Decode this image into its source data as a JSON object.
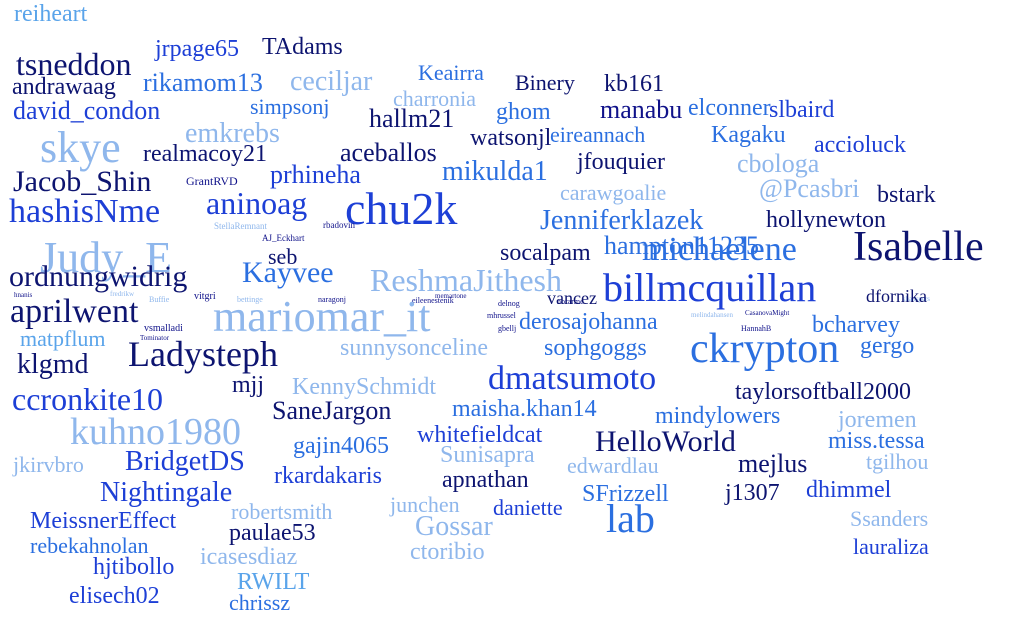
{
  "palette": {
    "navy": "#0d1470",
    "darkblue": "#10128a",
    "blue": "#1d3fd6",
    "royal": "#2b6fe0",
    "sky": "#5aa4ea",
    "light": "#8fb7ec",
    "white": "#ffffff"
  },
  "words": [
    {
      "text": "reiheart",
      "color": "sky",
      "size": 24
    },
    {
      "text": "jrpage65",
      "color": "blue",
      "size": 24
    },
    {
      "text": "TAdams",
      "color": "navy",
      "size": 24
    },
    {
      "text": "tsneddon",
      "color": "navy",
      "size": 32
    },
    {
      "text": "rikamom13",
      "color": "royal",
      "size": 26
    },
    {
      "text": "ceciljar",
      "color": "light",
      "size": 28
    },
    {
      "text": "Keairra",
      "color": "royal",
      "size": 22
    },
    {
      "text": "Binery",
      "color": "navy",
      "size": 22
    },
    {
      "text": "kb161",
      "color": "navy",
      "size": 24
    },
    {
      "text": "andrawaag",
      "color": "navy",
      "size": 24
    },
    {
      "text": "charronia",
      "color": "light",
      "size": 22
    },
    {
      "text": "david_condon",
      "color": "blue",
      "size": 26
    },
    {
      "text": "simpsonj",
      "color": "royal",
      "size": 22
    },
    {
      "text": "ghom",
      "color": "royal",
      "size": 24
    },
    {
      "text": "manabu",
      "color": "darkblue",
      "size": 26
    },
    {
      "text": "elconner",
      "color": "royal",
      "size": 24
    },
    {
      "text": "slbaird",
      "color": "blue",
      "size": 24
    },
    {
      "text": "emkrebs",
      "color": "light",
      "size": 28
    },
    {
      "text": "hallm21",
      "color": "navy",
      "size": 26
    },
    {
      "text": "watsonjl",
      "color": "navy",
      "size": 24
    },
    {
      "text": "eireannach",
      "color": "royal",
      "size": 22
    },
    {
      "text": "Kagaku",
      "color": "royal",
      "size": 24
    },
    {
      "text": "accioluck",
      "color": "blue",
      "size": 24
    },
    {
      "text": "skye",
      "color": "light",
      "size": 44
    },
    {
      "text": "realmacoy21",
      "color": "navy",
      "size": 24
    },
    {
      "text": "aceballos",
      "color": "navy",
      "size": 26
    },
    {
      "text": "prhineha",
      "color": "blue",
      "size": 26
    },
    {
      "text": "mikulda1",
      "color": "royal",
      "size": 28
    },
    {
      "text": "jfouquier",
      "color": "navy",
      "size": 24
    },
    {
      "text": "cbologa",
      "color": "light",
      "size": 26
    },
    {
      "text": "Jacob_Shin",
      "color": "navy",
      "size": 30
    },
    {
      "text": "GrantRVD",
      "color": "darkblue",
      "size": 12
    },
    {
      "text": "carawgoalie",
      "color": "light",
      "size": 22
    },
    {
      "text": "@Pcasbri",
      "color": "light",
      "size": 26
    },
    {
      "text": "bstark",
      "color": "navy",
      "size": 24
    },
    {
      "text": "hashisNme",
      "color": "blue",
      "size": 34
    },
    {
      "text": "aninoag",
      "color": "blue",
      "size": 32
    },
    {
      "text": "chu2k",
      "color": "blue",
      "size": 46
    },
    {
      "text": "Jenniferklazek",
      "color": "royal",
      "size": 28
    },
    {
      "text": "hollynewton",
      "color": "navy",
      "size": 24
    },
    {
      "text": "StellaRemnant",
      "color": "light",
      "size": 9
    },
    {
      "text": "AJ_Eckhart",
      "color": "darkblue",
      "size": 9
    },
    {
      "text": "hampton11235",
      "color": "royal",
      "size": 26
    },
    {
      "text": "Judy_E",
      "color": "light",
      "size": 44
    },
    {
      "text": "rbadovin",
      "color": "darkblue",
      "size": 9
    },
    {
      "text": "michaelene",
      "color": "royal",
      "size": 34
    },
    {
      "text": "Isabelle",
      "color": "navy",
      "size": 42
    },
    {
      "text": "seb",
      "color": "navy",
      "size": 22
    },
    {
      "text": "socalpam",
      "color": "navy",
      "size": 24
    },
    {
      "text": "ordnungwidrig",
      "color": "navy",
      "size": 30
    },
    {
      "text": "Kayvee",
      "color": "royal",
      "size": 30
    },
    {
      "text": "ReshmaJithesh",
      "color": "light",
      "size": 32
    },
    {
      "text": "hnanis",
      "color": "darkblue",
      "size": 7
    },
    {
      "text": "fredrikw",
      "color": "light",
      "size": 7
    },
    {
      "text": "memartone",
      "color": "darkblue",
      "size": 7
    },
    {
      "text": "khanspers",
      "color": "light",
      "size": 7
    },
    {
      "text": "billmcquillan",
      "color": "blue",
      "size": 40
    },
    {
      "text": "aprilwent",
      "color": "navy",
      "size": 34
    },
    {
      "text": "vitgri",
      "color": "darkblue",
      "size": 10
    },
    {
      "text": "Buffie",
      "color": "light",
      "size": 8
    },
    {
      "text": "bettinge",
      "color": "light",
      "size": 8
    },
    {
      "text": "naragonj",
      "color": "darkblue",
      "size": 8
    },
    {
      "text": "eileenestenik",
      "color": "darkblue",
      "size": 8
    },
    {
      "text": "delnog",
      "color": "darkblue",
      "size": 8
    },
    {
      "text": "norarme",
      "color": "darkblue",
      "size": 8
    },
    {
      "text": "dfornika",
      "color": "navy",
      "size": 18
    },
    {
      "text": "mariomar_it",
      "color": "light",
      "size": 44
    },
    {
      "text": "vancez",
      "color": "navy",
      "size": 18
    },
    {
      "text": "mhrussel",
      "color": "darkblue",
      "size": 8
    },
    {
      "text": "melindahansen",
      "color": "light",
      "size": 7
    },
    {
      "text": "derosajohanna",
      "color": "royal",
      "size": 24
    },
    {
      "text": "CasanovaMight",
      "color": "darkblue",
      "size": 7
    },
    {
      "text": "vsmalladi",
      "color": "darkblue",
      "size": 10
    },
    {
      "text": "bcharvey",
      "color": "royal",
      "size": 24
    },
    {
      "text": "matpflum",
      "color": "sky",
      "size": 22
    },
    {
      "text": "Tominator",
      "color": "darkblue",
      "size": 7
    },
    {
      "text": "gbellj",
      "color": "darkblue",
      "size": 8
    },
    {
      "text": "HannahB",
      "color": "darkblue",
      "size": 8
    },
    {
      "text": "sophgoggs",
      "color": "royal",
      "size": 24
    },
    {
      "text": "gergo",
      "color": "royal",
      "size": 24
    },
    {
      "text": "klgmd",
      "color": "navy",
      "size": 28
    },
    {
      "text": "Ladysteph",
      "color": "navy",
      "size": 36
    },
    {
      "text": "sunnysonceline",
      "color": "light",
      "size": 24
    },
    {
      "text": "ckrypton",
      "color": "royal",
      "size": 42
    },
    {
      "text": "mjj",
      "color": "navy",
      "size": 24
    },
    {
      "text": "KennySchmidt",
      "color": "light",
      "size": 24
    },
    {
      "text": "dmatsumoto",
      "color": "blue",
      "size": 34
    },
    {
      "text": "ccronkite10",
      "color": "blue",
      "size": 32
    },
    {
      "text": "taylorsoftball2000",
      "color": "navy",
      "size": 24
    },
    {
      "text": "SaneJargon",
      "color": "navy",
      "size": 26
    },
    {
      "text": "maisha.khan14",
      "color": "royal",
      "size": 24
    },
    {
      "text": "mindylowers",
      "color": "royal",
      "size": 24
    },
    {
      "text": "joremen",
      "color": "light",
      "size": 24
    },
    {
      "text": "kuhno1980",
      "color": "light",
      "size": 38
    },
    {
      "text": "gajin4065",
      "color": "royal",
      "size": 24
    },
    {
      "text": "whitefieldcat",
      "color": "blue",
      "size": 24
    },
    {
      "text": "HelloWorld",
      "color": "navy",
      "size": 30
    },
    {
      "text": "miss.tessa",
      "color": "royal",
      "size": 24
    },
    {
      "text": "jkirvbro",
      "color": "light",
      "size": 22
    },
    {
      "text": "BridgetDS",
      "color": "blue",
      "size": 28
    },
    {
      "text": "Sunisapra",
      "color": "light",
      "size": 24
    },
    {
      "text": "mejlus",
      "color": "navy",
      "size": 26
    },
    {
      "text": "tgilhou",
      "color": "light",
      "size": 22
    },
    {
      "text": "rkardakaris",
      "color": "blue",
      "size": 24
    },
    {
      "text": "apnathan",
      "color": "navy",
      "size": 24
    },
    {
      "text": "edwardlau",
      "color": "light",
      "size": 22
    },
    {
      "text": "Nightingale",
      "color": "blue",
      "size": 28
    },
    {
      "text": "SFrizzell",
      "color": "royal",
      "size": 24
    },
    {
      "text": "j1307",
      "color": "navy",
      "size": 24
    },
    {
      "text": "dhimmel",
      "color": "blue",
      "size": 24
    },
    {
      "text": "robertsmith",
      "color": "light",
      "size": 22
    },
    {
      "text": "junchen",
      "color": "light",
      "size": 22
    },
    {
      "text": "daniette",
      "color": "blue",
      "size": 22
    },
    {
      "text": "MeissnerEffect",
      "color": "blue",
      "size": 24
    },
    {
      "text": "lab",
      "color": "royal",
      "size": 40
    },
    {
      "text": "Ssanders",
      "color": "light",
      "size": 22
    },
    {
      "text": "paulae53",
      "color": "navy",
      "size": 24
    },
    {
      "text": "Gossar",
      "color": "light",
      "size": 28
    },
    {
      "text": "rebekahnolan",
      "color": "royal",
      "size": 22
    },
    {
      "text": "icasesdiaz",
      "color": "light",
      "size": 24
    },
    {
      "text": "lauraliza",
      "color": "blue",
      "size": 22
    },
    {
      "text": "hjtibollo",
      "color": "blue",
      "size": 24
    },
    {
      "text": "ctoribio",
      "color": "light",
      "size": 24
    },
    {
      "text": "RWILT",
      "color": "sky",
      "size": 24
    },
    {
      "text": "elisech02",
      "color": "blue",
      "size": 24
    },
    {
      "text": "chrissz",
      "color": "royal",
      "size": 22
    }
  ]
}
